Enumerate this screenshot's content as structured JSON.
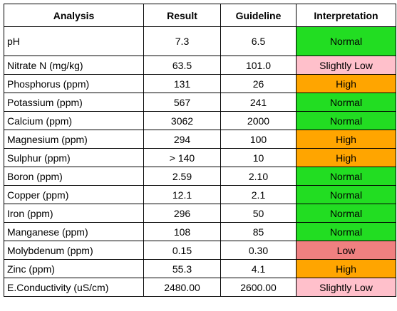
{
  "headers": {
    "analysis": "Analysis",
    "result": "Result",
    "guideline": "Guideline",
    "interpretation": "Interpretation"
  },
  "status_colors": {
    "Normal": "#22dd22",
    "Slightly Low": "#ffc0cb",
    "High": "#ffa500",
    "Low": "#f08080"
  },
  "rows": [
    {
      "analysis": "pH",
      "result": "7.3",
      "guideline": "6.5",
      "interpretation": "Normal"
    },
    {
      "analysis": "Nitrate N (mg/kg)",
      "result": "63.5",
      "guideline": "101.0",
      "interpretation": "Slightly Low"
    },
    {
      "analysis": "Phosphorus (ppm)",
      "result": "131",
      "guideline": "26",
      "interpretation": "High"
    },
    {
      "analysis": "Potassium (ppm)",
      "result": "567",
      "guideline": "241",
      "interpretation": "Normal"
    },
    {
      "analysis": "Calcium (ppm)",
      "result": "3062",
      "guideline": "2000",
      "interpretation": "Normal"
    },
    {
      "analysis": "Magnesium (ppm)",
      "result": "294",
      "guideline": "100",
      "interpretation": "High"
    },
    {
      "analysis": "Sulphur (ppm)",
      "result": "> 140",
      "guideline": "10",
      "interpretation": "High"
    },
    {
      "analysis": "Boron (ppm)",
      "result": "2.59",
      "guideline": "2.10",
      "interpretation": "Normal"
    },
    {
      "analysis": "Copper (ppm)",
      "result": "12.1",
      "guideline": "2.1",
      "interpretation": "Normal"
    },
    {
      "analysis": "Iron (ppm)",
      "result": "296",
      "guideline": "50",
      "interpretation": "Normal"
    },
    {
      "analysis": "Manganese (ppm)",
      "result": "108",
      "guideline": "85",
      "interpretation": "Normal"
    },
    {
      "analysis": "Molybdenum (ppm)",
      "result": "0.15",
      "guideline": "0.30",
      "interpretation": "Low"
    },
    {
      "analysis": "Zinc (ppm)",
      "result": "55.3",
      "guideline": "4.1",
      "interpretation": "High"
    },
    {
      "analysis": "E.Conductivity (uS/cm)",
      "result": "2480.00",
      "guideline": "2600.00",
      "interpretation": "Slightly Low"
    }
  ]
}
